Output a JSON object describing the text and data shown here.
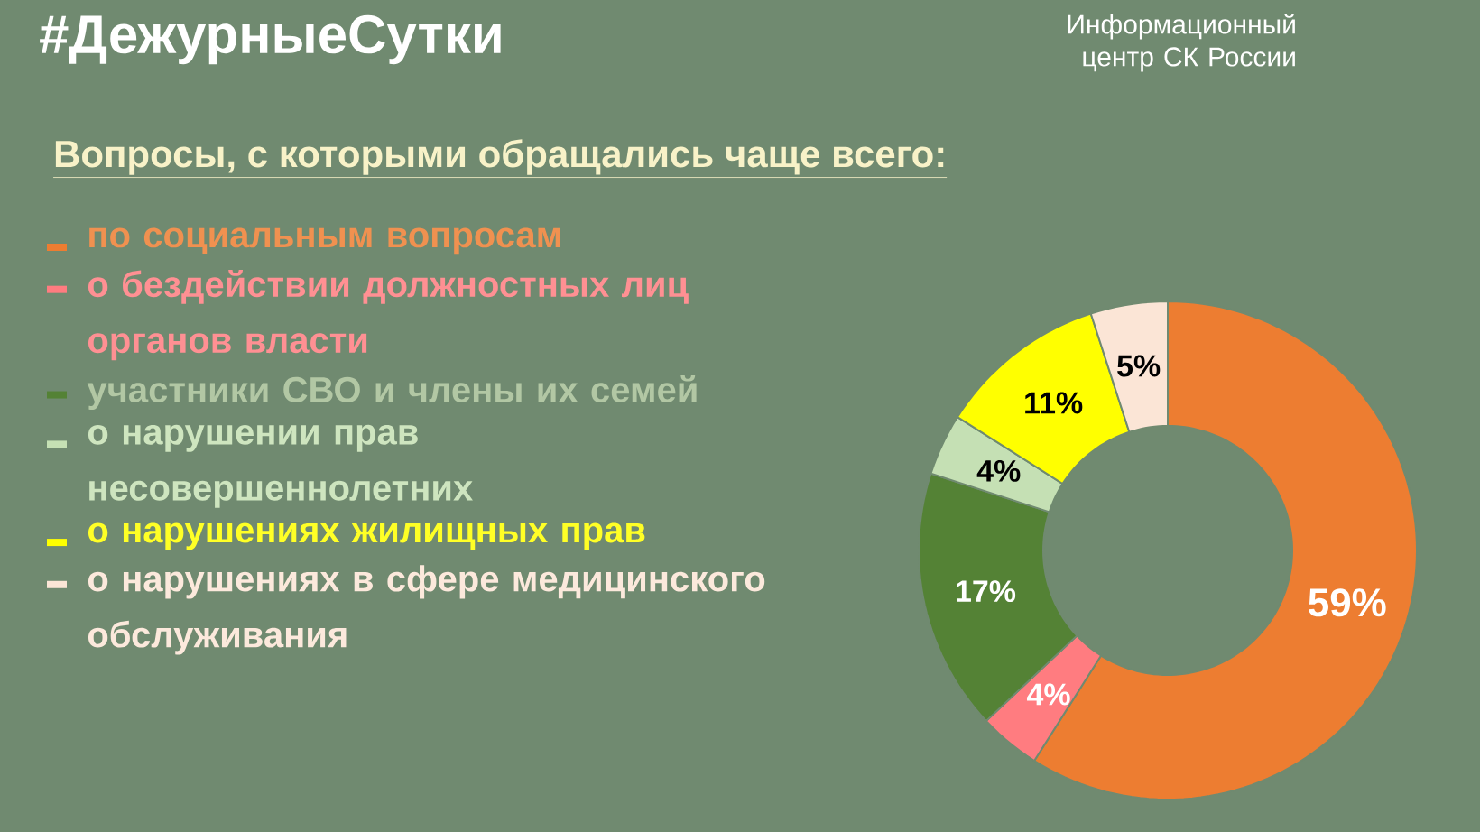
{
  "chart_data": {
    "type": "donut",
    "title": "#ДежурныеСутки",
    "subtitle": "Вопросы, с которыми обращались чаще всего:",
    "categories": [
      "по социальным вопросам",
      "о бездействии должностных лиц органов власти",
      "участники СВО и члены их семей",
      "о нарушении прав несовершеннолетних",
      "о нарушениях жилищных прав",
      "о нарушениях в сфере медицинского обслуживания"
    ],
    "values": [
      59,
      4,
      17,
      4,
      11,
      5
    ],
    "colors": [
      "#ed7d31",
      "#ff7c80",
      "#548235",
      "#c5e0b4",
      "#ffff00",
      "#fbe5d6"
    ],
    "value_labels": [
      "59%",
      "4%",
      "17%",
      "4%",
      "11%",
      "5%"
    ],
    "legend": "left",
    "annotations": [
      "Информационный центр СК России"
    ]
  }
}
